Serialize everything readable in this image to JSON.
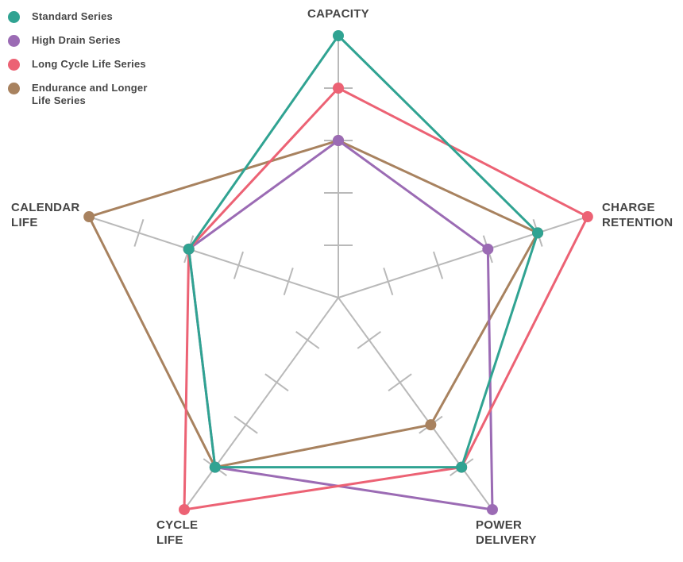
{
  "legend": {
    "position": "top-left",
    "items": [
      {
        "label": "Standard Series",
        "color": "#30a392"
      },
      {
        "label": "High Drain Series",
        "color": "#9b6bb4"
      },
      {
        "label": "Long Cycle Life Series",
        "color": "#ec6274"
      },
      {
        "label": "Endurance and Longer Life Series",
        "color": "#a8825f"
      }
    ]
  },
  "chart_data": {
    "type": "radar",
    "title": "",
    "categories": [
      "CAPACITY",
      "CHARGE RETENTION",
      "POWER DELIVERY",
      "CYCLE LIFE",
      "CALENDAR LIFE"
    ],
    "scale": {
      "min": 0,
      "max": 5,
      "tick_values": [
        1,
        2,
        3,
        4
      ]
    },
    "grid": "radial-axes-with-perpendicular-ticks",
    "axis_line_color": "#b9b9b9",
    "legend_position": "top-left",
    "series": [
      {
        "name": "Standard Series",
        "color": "#30a392",
        "values": [
          5,
          4,
          4,
          4,
          3
        ]
      },
      {
        "name": "High Drain Series",
        "color": "#9b6bb4",
        "values": [
          3,
          3,
          5,
          4,
          3
        ]
      },
      {
        "name": "Long Cycle Life Series",
        "color": "#ec6274",
        "values": [
          4,
          5,
          4,
          5,
          3
        ]
      },
      {
        "name": "Endurance and Longer Life Series",
        "color": "#a8825f",
        "values": [
          3,
          4,
          3,
          4,
          5
        ]
      }
    ]
  }
}
